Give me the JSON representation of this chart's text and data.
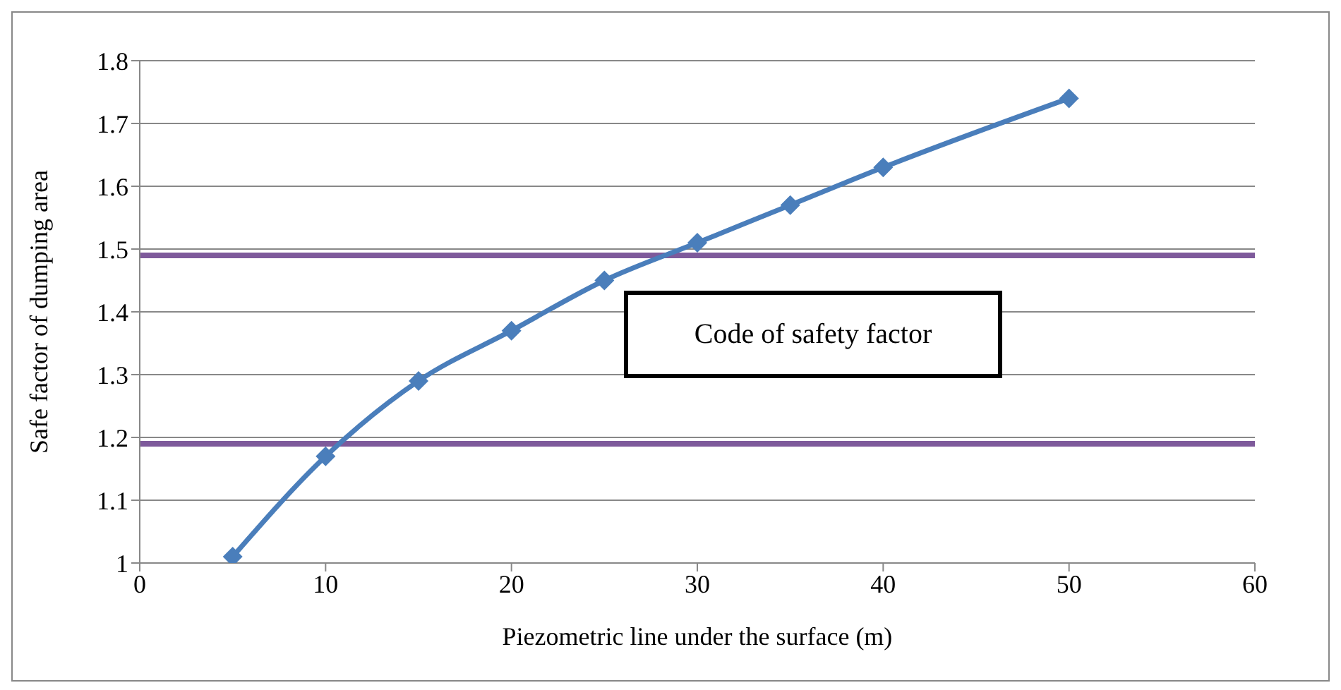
{
  "chart_data": {
    "type": "line",
    "xlabel": "Piezometric line under the surface (m)",
    "ylabel": "Safe factor of dumping area",
    "x": [
      5,
      10,
      15,
      20,
      25,
      30,
      35,
      40,
      50
    ],
    "series": [
      {
        "color": "#4a7ebb",
        "values": [
          1.01,
          1.17,
          1.29,
          1.37,
          1.45,
          1.51,
          1.57,
          1.63,
          1.74
        ]
      }
    ],
    "xlim": [
      0,
      60
    ],
    "xticks": [
      0,
      10,
      20,
      30,
      40,
      50,
      60
    ],
    "ylim": [
      1,
      1.8
    ],
    "yticks": [
      1,
      1.1,
      1.2,
      1.3,
      1.4,
      1.5,
      1.6,
      1.7,
      1.8
    ],
    "ref_lines": [
      {
        "axis": "y",
        "value": 1.49,
        "color": "#7e5a9b"
      },
      {
        "axis": "y",
        "value": 1.19,
        "color": "#7e5a9b"
      }
    ],
    "annotations": [
      "Code of safety factor"
    ],
    "grid": "y",
    "legend": false,
    "marker": "diamond",
    "line_style": "solid"
  }
}
